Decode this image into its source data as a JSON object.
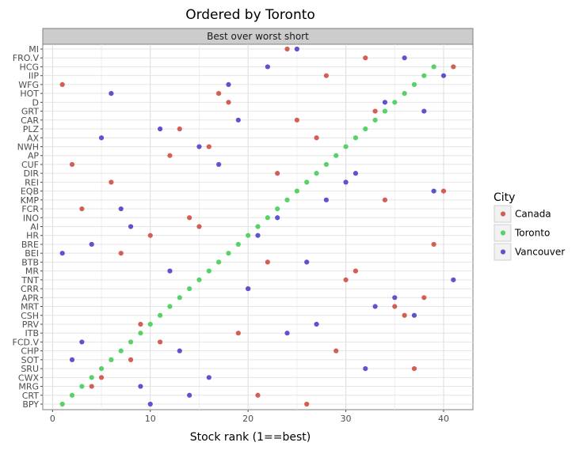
{
  "chart_data": {
    "type": "scatter",
    "title": "Ordered by Toronto",
    "facet_label": "Best over worst short",
    "xlabel": "Stock rank (1==best)",
    "ylabel": "",
    "xlim": [
      -1,
      43
    ],
    "xticks": [
      0,
      10,
      20,
      30,
      40
    ],
    "categories": [
      "MI",
      "FRO.V",
      "HCG",
      "IIP",
      "WFG",
      "HOT",
      "D",
      "GRT",
      "CAR",
      "PLZ",
      "AX",
      "NWH",
      "AP",
      "CUF",
      "DIR",
      "REI",
      "EQB",
      "KMP",
      "FCR",
      "INO",
      "AI",
      "HR",
      "BRE",
      "BEI",
      "BTB",
      "MR",
      "TNT",
      "CRR",
      "APR",
      "MRT",
      "CSH",
      "PRV",
      "ITB",
      "FCD.V",
      "CHP",
      "SOT",
      "SRU",
      "CWX",
      "MRG",
      "CRT",
      "BPY"
    ],
    "series": [
      {
        "name": "Canada",
        "color": "#d55e54",
        "values": [
          24,
          32,
          41,
          28,
          1,
          17,
          18,
          33,
          25,
          13,
          27,
          16,
          12,
          2,
          23,
          6,
          40,
          34,
          3,
          14,
          15,
          10,
          39,
          7,
          22,
          31,
          30,
          20,
          38,
          35,
          36,
          9,
          19,
          11,
          29,
          8,
          37,
          5,
          4,
          21,
          26
        ]
      },
      {
        "name": "Toronto",
        "color": "#56d266",
        "values": [
          null,
          null,
          39,
          38,
          37,
          36,
          35,
          34,
          33,
          32,
          31,
          30,
          29,
          28,
          27,
          26,
          25,
          24,
          23,
          22,
          21,
          20,
          19,
          18,
          17,
          16,
          15,
          14,
          13,
          12,
          11,
          10,
          9,
          8,
          7,
          6,
          5,
          4,
          3,
          2,
          1
        ]
      },
      {
        "name": "Vancouver",
        "color": "#5d53cf",
        "values": [
          25,
          36,
          22,
          40,
          18,
          6,
          34,
          38,
          19,
          11,
          5,
          15,
          null,
          17,
          31,
          30,
          39,
          28,
          7,
          23,
          8,
          21,
          4,
          1,
          26,
          12,
          41,
          20,
          35,
          33,
          37,
          27,
          24,
          3,
          13,
          2,
          32,
          16,
          9,
          14,
          10
        ]
      }
    ],
    "legend": {
      "title": "City",
      "position": "right",
      "entries": [
        "Canada",
        "Toronto",
        "Vancouver"
      ]
    }
  }
}
